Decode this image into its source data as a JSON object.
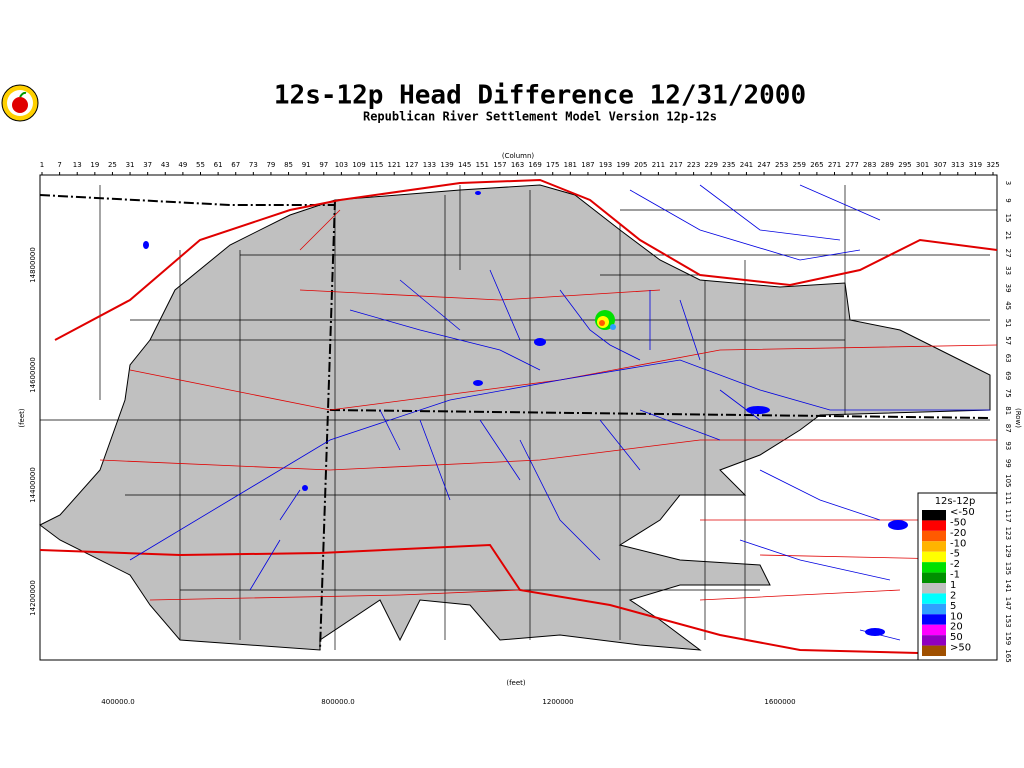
{
  "title": "12s-12p Head Difference 12/31/2000",
  "subtitle": "Republican River Settlement Model Version 12p-12s",
  "column_axis": {
    "label": "(Column)",
    "ticks": [
      1,
      7,
      13,
      19,
      25,
      31,
      37,
      43,
      49,
      55,
      61,
      67,
      73,
      79,
      85,
      91,
      97,
      103,
      109,
      115,
      121,
      127,
      133,
      139,
      145,
      151,
      157,
      163,
      169,
      175,
      181,
      187,
      193,
      199,
      205,
      211,
      217,
      223,
      229,
      235,
      241,
      247,
      253,
      259,
      265,
      271,
      277,
      283,
      289,
      295,
      301,
      307,
      313,
      319,
      325
    ]
  },
  "row_axis": {
    "label": "(Row)",
    "ticks": [
      3,
      9,
      15,
      21,
      27,
      33,
      39,
      45,
      51,
      57,
      63,
      69,
      75,
      81,
      87,
      93,
      99,
      105,
      111,
      117,
      123,
      129,
      135,
      141,
      147,
      153,
      159,
      165
    ]
  },
  "x_feet_axis": {
    "label": "(feet)",
    "ticks": [
      "400000.0",
      "800000.0",
      "1200000",
      "1600000"
    ]
  },
  "y_feet_axis": {
    "label": "(feet)",
    "ticks": [
      "14800000",
      "14600000",
      "14400000",
      "14200000"
    ]
  },
  "legend": {
    "title": "12s-12p",
    "entries": [
      {
        "label": "<-50",
        "color": "#000000"
      },
      {
        "label": "-50",
        "color": "#ff0000"
      },
      {
        "label": "-20",
        "color": "#ff5a00"
      },
      {
        "label": "-10",
        "color": "#ffb400"
      },
      {
        "label": "-5",
        "color": "#ffff00"
      },
      {
        "label": "-2",
        "color": "#00e000"
      },
      {
        "label": "-1",
        "color": "#009000"
      },
      {
        "label": "1",
        "color": "#c0c0c0"
      },
      {
        "label": "2",
        "color": "#00ffff"
      },
      {
        "label": "5",
        "color": "#30a0ff"
      },
      {
        "label": "10",
        "color": "#0000ff"
      },
      {
        "label": "20",
        "color": "#ff00ff"
      },
      {
        "label": "50",
        "color": "#9000c0"
      },
      {
        "label": ">50",
        "color": "#a05000"
      }
    ]
  }
}
